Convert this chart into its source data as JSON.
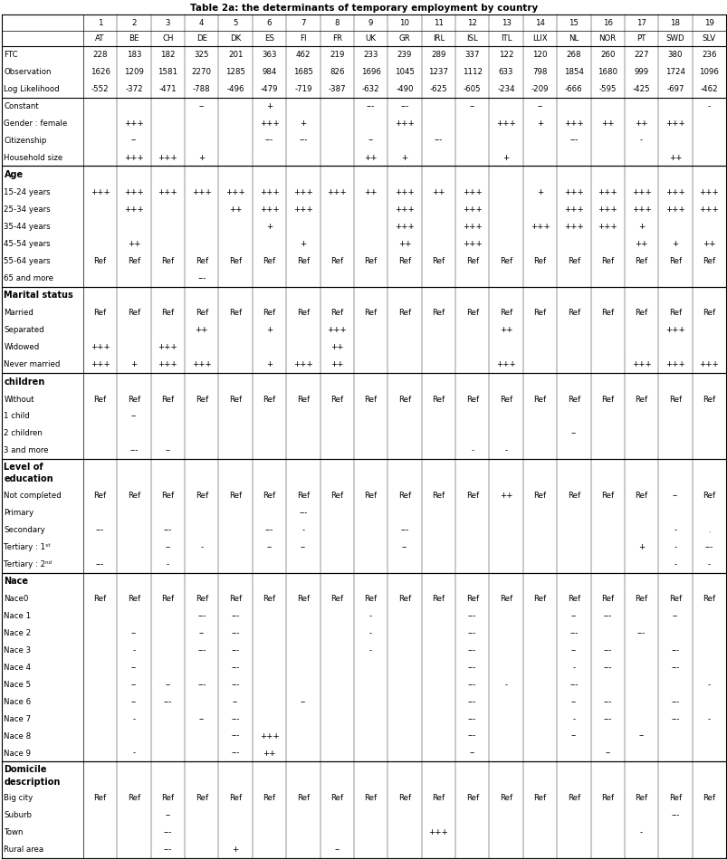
{
  "title": "Table 2a: the determinants of temporary employment by country",
  "col_nums": [
    "",
    "1",
    "2",
    "3",
    "4",
    "5",
    "6",
    "7",
    "8",
    "9",
    "10",
    "11",
    "12",
    "13",
    "14",
    "15",
    "16",
    "17",
    "18",
    "19"
  ],
  "col_abbr": [
    "",
    "AT",
    "BE",
    "CH",
    "DE",
    "DK",
    "ES",
    "FI",
    "FR",
    "UK",
    "GR",
    "IRL",
    "ISL",
    "ITL",
    "LUX",
    "NL",
    "NOR",
    "PT",
    "SWD",
    "SLV"
  ],
  "rows": [
    {
      "label": "FTC",
      "bold": false,
      "section": false,
      "data": [
        "228",
        "183",
        "182",
        "325",
        "201",
        "363",
        "462",
        "219",
        "233",
        "239",
        "289",
        "337",
        "122",
        "120",
        "268",
        "260",
        "227",
        "380",
        "236"
      ]
    },
    {
      "label": "Observation",
      "bold": false,
      "section": false,
      "data": [
        "1626",
        "1209",
        "1581",
        "2270",
        "1285",
        "984",
        "1685",
        "826",
        "1696",
        "1045",
        "1237",
        "1112",
        "633",
        "798",
        "1854",
        "1680",
        "999",
        "1724",
        "1096"
      ]
    },
    {
      "label": "Log Likelihood",
      "bold": false,
      "section": false,
      "data": [
        "-552",
        "-372",
        "-471",
        "-788",
        "-496",
        "-479",
        "-719",
        "-387",
        "-632",
        "-490",
        "-625",
        "-605",
        "-234",
        "-209",
        "-666",
        "-595",
        "-425",
        "-697",
        "-462"
      ]
    },
    {
      "label": "Constant",
      "bold": false,
      "section": false,
      "data": [
        "",
        "",
        "",
        "--",
        "",
        "+",
        "",
        "",
        "---",
        "---",
        "",
        "--",
        "",
        "--",
        "",
        "",
        "",
        "",
        "-"
      ]
    },
    {
      "label": "Gender : female",
      "bold": false,
      "section": false,
      "data": [
        "",
        "+++",
        "",
        "",
        "",
        "+++",
        "+",
        "",
        "",
        "+++",
        "",
        "",
        "+++",
        "+",
        "+++",
        "++",
        "++",
        "+++",
        ""
      ]
    },
    {
      "label": "Citizenship",
      "bold": false,
      "section": false,
      "data": [
        "",
        "--",
        "",
        "",
        "",
        "---",
        "---",
        "",
        "--",
        "",
        "---",
        "",
        "",
        "",
        "---",
        "",
        "-",
        "",
        ""
      ]
    },
    {
      "label": "Household size",
      "bold": false,
      "section": false,
      "data": [
        "",
        "+++",
        "+++",
        "+",
        "",
        "",
        "",
        "",
        "++",
        "+",
        "",
        "",
        "+",
        "",
        "",
        "",
        "",
        "++",
        ""
      ]
    },
    {
      "label": "Age",
      "bold": true,
      "section": true,
      "data": [
        "",
        "",
        "",
        "",
        "",
        "",
        "",
        "",
        "",
        "",
        "",
        "",
        "",
        "",
        "",
        "",
        "",
        "",
        ""
      ]
    },
    {
      "label": "15-24 years",
      "bold": false,
      "section": false,
      "data": [
        "+++",
        "+++",
        "+++",
        "+++",
        "+++",
        "+++",
        "+++",
        "+++",
        "++",
        "+++",
        "++",
        "+++",
        "",
        "+",
        "+++",
        "+++",
        "+++",
        "+++",
        "+++"
      ]
    },
    {
      "label": "25-34 years",
      "bold": false,
      "section": false,
      "data": [
        "",
        "+++",
        "",
        "",
        "++",
        "+++",
        "+++",
        "",
        "",
        "+++",
        "",
        "+++",
        "",
        "",
        "+++",
        "+++",
        "+++",
        "+++",
        "+++"
      ]
    },
    {
      "label": "35-44 years",
      "bold": false,
      "section": false,
      "data": [
        "",
        "",
        "",
        "",
        "",
        "+",
        "",
        "",
        "",
        "+++",
        "",
        "+++",
        "",
        "+++",
        "+++",
        "+++",
        "+",
        "",
        ""
      ]
    },
    {
      "label": "45-54 years",
      "bold": false,
      "section": false,
      "data": [
        "",
        "++",
        "",
        "",
        "",
        "",
        "+",
        "",
        "",
        "++",
        "",
        "+++",
        "",
        "",
        "",
        "",
        "++",
        "+",
        "++"
      ]
    },
    {
      "label": "55-64 years",
      "bold": false,
      "section": false,
      "data": [
        "Ref",
        "Ref",
        "Ref",
        "Ref",
        "Ref",
        "Ref",
        "Ref",
        "Ref",
        "Ref",
        "Ref",
        "Ref",
        "Ref",
        "Ref",
        "Ref",
        "Ref",
        "Ref",
        "Ref",
        "Ref",
        "Ref"
      ]
    },
    {
      "label": "65 and more",
      "bold": false,
      "section": false,
      "data": [
        "",
        "",
        "",
        "---",
        "",
        "",
        "",
        "",
        "",
        "",
        "",
        "",
        "",
        "",
        "",
        "",
        "",
        "",
        ""
      ]
    },
    {
      "label": "Marital status",
      "bold": true,
      "section": true,
      "data": [
        "",
        "",
        "",
        "",
        "",
        "",
        "",
        "",
        "",
        "",
        "",
        "",
        "",
        "",
        "",
        "",
        "",
        "",
        ""
      ]
    },
    {
      "label": "Married",
      "bold": false,
      "section": false,
      "data": [
        "Ref",
        "Ref",
        "Ref",
        "Ref",
        "Ref",
        "Ref",
        "Ref",
        "Ref",
        "Ref",
        "Ref",
        "Ref",
        "Ref",
        "Ref",
        "Ref",
        "Ref",
        "Ref",
        "Ref",
        "Ref",
        "Ref"
      ]
    },
    {
      "label": "Separated",
      "bold": false,
      "section": false,
      "data": [
        "",
        "",
        "",
        "++",
        "",
        "+",
        "",
        "+++",
        "",
        "",
        "",
        "",
        "++",
        "",
        "",
        "",
        "",
        "+++",
        ""
      ]
    },
    {
      "label": "Widowed",
      "bold": false,
      "section": false,
      "data": [
        "+++",
        "",
        "+++",
        "",
        "",
        "",
        "",
        "++",
        "",
        "",
        "",
        "",
        "",
        "",
        "",
        "",
        "",
        "",
        ""
      ]
    },
    {
      "label": "Never married",
      "bold": false,
      "section": false,
      "data": [
        "+++",
        "+",
        "+++",
        "+++",
        "",
        "+",
        "+++",
        "++",
        "",
        "",
        "",
        "",
        "+++",
        "",
        "",
        "",
        "+++",
        "+++",
        "+++"
      ]
    },
    {
      "label": "children",
      "bold": true,
      "section": true,
      "data": [
        "",
        "",
        "",
        "",
        "",
        "",
        "",
        "",
        "",
        "",
        "",
        "",
        "",
        "",
        "",
        "",
        "",
        "",
        ""
      ]
    },
    {
      "label": "Without",
      "bold": false,
      "section": false,
      "data": [
        "Ref",
        "Ref",
        "Ref",
        "Ref",
        "Ref",
        "Ref",
        "Ref",
        "Ref",
        "Ref",
        "Ref",
        "Ref",
        "Ref",
        "Ref",
        "Ref",
        "Ref",
        "Ref",
        "Ref",
        "Ref",
        "Ref"
      ]
    },
    {
      "label": "1 child",
      "bold": false,
      "section": false,
      "data": [
        "",
        "--",
        "",
        "",
        "",
        "",
        "",
        "",
        "",
        "",
        "",
        "",
        "",
        "",
        "",
        "",
        "",
        "",
        ""
      ]
    },
    {
      "label": "2 children",
      "bold": false,
      "section": false,
      "data": [
        "",
        "",
        "",
        "",
        "",
        "",
        "",
        "",
        "",
        "",
        "",
        "",
        "",
        "",
        "--",
        "",
        "",
        "",
        ""
      ]
    },
    {
      "label": "3 and more",
      "bold": false,
      "section": false,
      "data": [
        "",
        "---",
        "--",
        "",
        "",
        "",
        "",
        "",
        "",
        "",
        "",
        "-",
        "-",
        "",
        "",
        "",
        "",
        "",
        ""
      ]
    },
    {
      "label": "Level of\neducation",
      "bold": true,
      "section": true,
      "data": [
        "",
        "",
        "",
        "",
        "",
        "",
        "",
        "",
        "",
        "",
        "",
        "",
        "",
        "",
        "",
        "",
        "",
        "",
        ""
      ]
    },
    {
      "label": "Not completed",
      "bold": false,
      "section": false,
      "data": [
        "Ref",
        "Ref",
        "Ref",
        "Ref",
        "Ref",
        "Ref",
        "Ref",
        "Ref",
        "Ref",
        "Ref",
        "Ref",
        "Ref",
        "++",
        "Ref",
        "Ref",
        "Ref",
        "Ref",
        "--",
        "Ref"
      ]
    },
    {
      "label": "Primary",
      "bold": false,
      "section": false,
      "data": [
        "",
        "",
        "",
        "",
        "",
        "",
        "---",
        "",
        "",
        "",
        "",
        "",
        "",
        "",
        "",
        "",
        "",
        "",
        ""
      ]
    },
    {
      "label": "Secondary",
      "bold": false,
      "section": false,
      "data": [
        "---",
        "",
        "---",
        "",
        "",
        "---",
        "-",
        "",
        "",
        "---",
        "",
        "",
        "",
        "",
        "",
        "",
        "",
        "-",
        "."
      ]
    },
    {
      "label": "Tertiary : 1ˢᵗ",
      "bold": false,
      "section": false,
      "data": [
        "",
        "",
        "--",
        "-",
        "",
        "--",
        "--",
        "",
        "",
        "--",
        "",
        "",
        "",
        "",
        "",
        "",
        "+",
        "-",
        "---"
      ]
    },
    {
      "label": "Tertiary : 2ⁿᵈ",
      "bold": false,
      "section": false,
      "data": [
        "---",
        "",
        "-",
        "",
        "",
        "",
        "",
        "",
        "",
        "",
        "",
        "",
        "",
        "",
        "",
        "",
        "",
        "-",
        "-"
      ]
    },
    {
      "label": "Nace",
      "bold": true,
      "section": true,
      "data": [
        "",
        "",
        "",
        "",
        "",
        "",
        "",
        "",
        "",
        "",
        "",
        "",
        "",
        "",
        "",
        "",
        "",
        "",
        ""
      ]
    },
    {
      "label": "Nace0",
      "bold": false,
      "section": false,
      "data": [
        "Ref",
        "Ref",
        "Ref",
        "Ref",
        "Ref",
        "Ref",
        "Ref",
        "Ref",
        "Ref",
        "Ref",
        "Ref",
        "Ref",
        "Ref",
        "Ref",
        "Ref",
        "Ref",
        "Ref",
        "Ref",
        "Ref"
      ]
    },
    {
      "label": "Nace 1",
      "bold": false,
      "section": false,
      "data": [
        "",
        "",
        "",
        "---",
        "---",
        "",
        "",
        "",
        "-",
        "",
        "",
        "---",
        "",
        "",
        "--",
        "---",
        "",
        "--",
        ""
      ]
    },
    {
      "label": "Nace 2",
      "bold": false,
      "section": false,
      "data": [
        "",
        "--",
        "",
        "--",
        "---",
        "",
        "",
        "",
        "-",
        "",
        "",
        "---",
        "",
        "",
        "---",
        "",
        "---",
        "",
        ""
      ]
    },
    {
      "label": "Nace 3",
      "bold": false,
      "section": false,
      "data": [
        "",
        "-",
        "",
        "---",
        "---",
        "",
        "",
        "",
        "-",
        "",
        "",
        "---",
        "",
        "",
        "--",
        "---",
        "",
        "---",
        ""
      ]
    },
    {
      "label": "Nace 4",
      "bold": false,
      "section": false,
      "data": [
        "",
        "--",
        "",
        "",
        "---",
        "",
        "",
        "",
        "",
        "",
        "",
        "---",
        "",
        "",
        "-",
        "---",
        "",
        "---",
        ""
      ]
    },
    {
      "label": "Nace 5",
      "bold": false,
      "section": false,
      "data": [
        "",
        "--",
        "--",
        "---",
        "---",
        "",
        "",
        "",
        "",
        "",
        "",
        "---",
        "-",
        "",
        "---",
        "",
        "",
        "",
        "-"
      ]
    },
    {
      "label": "Nace 6",
      "bold": false,
      "section": false,
      "data": [
        "",
        "--",
        "---",
        "",
        "--",
        "",
        "--",
        "",
        "",
        "",
        "",
        "---",
        "",
        "",
        "--",
        "---",
        "",
        "---",
        ""
      ]
    },
    {
      "label": "Nace 7",
      "bold": false,
      "section": false,
      "data": [
        "",
        "-",
        "",
        "--",
        "---",
        "",
        "",
        "",
        "",
        "",
        "",
        "---",
        "",
        "",
        "-",
        "---",
        "",
        "---",
        "-"
      ]
    },
    {
      "label": "Nace 8",
      "bold": false,
      "section": false,
      "data": [
        "",
        "",
        "",
        "",
        "---",
        "+++",
        "",
        "",
        "",
        "",
        "",
        "---",
        "",
        "",
        "--",
        "",
        "--",
        "",
        ""
      ]
    },
    {
      "label": "Nace 9",
      "bold": false,
      "section": false,
      "data": [
        "",
        "-",
        "",
        "",
        "---",
        "++",
        "",
        "",
        "",
        "",
        "",
        "--",
        "",
        "",
        "",
        "--",
        "",
        "",
        ""
      ]
    },
    {
      "label": "Domicile\ndescription",
      "bold": true,
      "section": true,
      "data": [
        "",
        "",
        "",
        "",
        "",
        "",
        "",
        "",
        "",
        "",
        "",
        "",
        "",
        "",
        "",
        "",
        "",
        "",
        ""
      ]
    },
    {
      "label": "Big city",
      "bold": false,
      "section": false,
      "data": [
        "Ref",
        "Ref",
        "Ref",
        "Ref",
        "Ref",
        "Ref",
        "Ref",
        "Ref",
        "Ref",
        "Ref",
        "Ref",
        "Ref",
        "Ref",
        "Ref",
        "Ref",
        "Ref",
        "Ref",
        "Ref",
        "Ref"
      ]
    },
    {
      "label": "Suburb",
      "bold": false,
      "section": false,
      "data": [
        "",
        "",
        "--",
        "",
        "",
        "",
        "",
        "",
        "",
        "",
        "",
        "",
        "",
        "",
        "",
        "",
        "",
        "---",
        ""
      ]
    },
    {
      "label": "Town",
      "bold": false,
      "section": false,
      "data": [
        "",
        "",
        "---",
        "",
        "",
        "",
        "",
        "",
        "",
        "",
        "+++",
        "",
        "",
        "",
        "",
        "",
        "-",
        "",
        ""
      ]
    },
    {
      "label": "Rural area",
      "bold": false,
      "section": false,
      "data": [
        "",
        "",
        "---",
        "",
        "+",
        "",
        "",
        "--",
        "",
        "",
        "",
        "",
        "",
        "",
        "",
        "",
        "",
        "",
        ""
      ]
    }
  ],
  "thick_after": [
    "Log Likelihood",
    "Household size",
    "65 and more",
    "Never married",
    "3 and more",
    "Tertiary : 2ⁿᵈ",
    "Nace 9",
    "Rural area"
  ],
  "section_labels": [
    "Age",
    "Marital status",
    "children",
    "Level of\neducation",
    "Nace",
    "Domicile\ndescription"
  ]
}
